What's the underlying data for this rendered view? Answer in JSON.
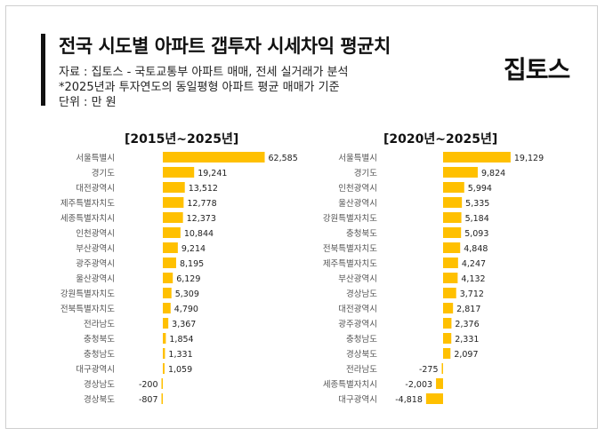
{
  "header": {
    "title": "전국 시도별 아파트 갭투자 시세차익 평균치",
    "source": "자료 : 집토스 - 국토교통부 아파트 매매, 전세 실거래가 분석",
    "note": "*2025년과 투자연도의 동일평형 아파트 평균 매매가 기준",
    "unit": "단위 : 만 원",
    "logo": "집토스"
  },
  "colors": {
    "bar": "#FFC000",
    "accent_bar": "#111111"
  },
  "chart_data": [
    {
      "type": "bar",
      "orientation": "horizontal",
      "title": "[2015년~2025년]",
      "categories": [
        "서울특별시",
        "경기도",
        "대전광역시",
        "제주특별자치도",
        "세종특별자치시",
        "인천광역시",
        "부산광역시",
        "광주광역시",
        "울산광역시",
        "강원특별자치도",
        "전북특별자치도",
        "전라남도",
        "충청북도",
        "충청남도",
        "대구광역시",
        "경상남도",
        "경상북도"
      ],
      "values": [
        62585,
        19241,
        13512,
        12778,
        12373,
        10844,
        9214,
        8195,
        6129,
        5309,
        4790,
        3367,
        1854,
        1331,
        1059,
        -200,
        -807
      ],
      "labels": [
        "62,585",
        "19,241",
        "13,512",
        "12,778",
        "12,373",
        "10,844",
        "9,214",
        "8,195",
        "6,129",
        "5,309",
        "4,790",
        "3,367",
        "1,854",
        "1,331",
        "1,059",
        "-200",
        "-807"
      ],
      "xlim": [
        -807,
        62585
      ]
    },
    {
      "type": "bar",
      "orientation": "horizontal",
      "title": "[2020년~2025년]",
      "categories": [
        "서울특별시",
        "경기도",
        "인천광역시",
        "울산광역시",
        "강원특별자치도",
        "충청북도",
        "전북특별자치도",
        "제주특별자치도",
        "부산광역시",
        "경상남도",
        "대전광역시",
        "광주광역시",
        "충청남도",
        "경상북도",
        "전라남도",
        "세종특별자치시",
        "대구광역시"
      ],
      "values": [
        19129,
        9824,
        5994,
        5335,
        5184,
        5093,
        4848,
        4247,
        4132,
        3712,
        2817,
        2376,
        2331,
        2097,
        -275,
        -2003,
        -4818
      ],
      "labels": [
        "19,129",
        "9,824",
        "5,994",
        "5,335",
        "5,184",
        "5,093",
        "4,848",
        "4,247",
        "4,132",
        "3,712",
        "2,817",
        "2,376",
        "2,331",
        "2,097",
        "-275",
        "-2,003",
        "-4,818"
      ],
      "xlim": [
        -4818,
        19129
      ]
    }
  ]
}
